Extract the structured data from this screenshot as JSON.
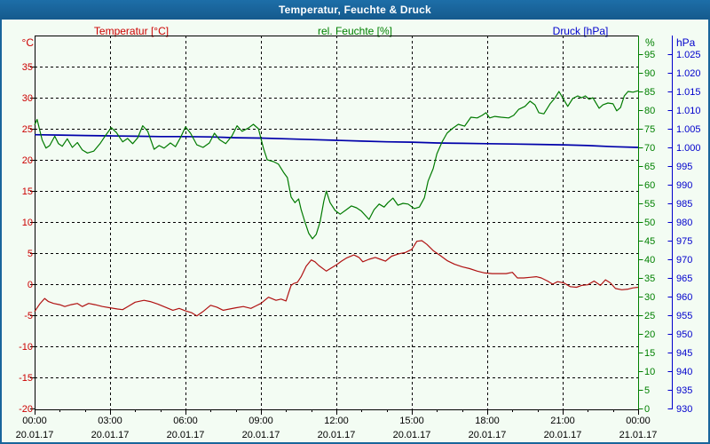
{
  "window": {
    "title": "Temperatur, Feuchte & Druck"
  },
  "header": {
    "temperature_label": "Temperatur [°C]",
    "humidity_label": "rel. Feuchte [%]",
    "pressure_label": "Druck [hPa]",
    "temperature_unit": "°C",
    "humidity_unit": "%",
    "pressure_unit": "hPa"
  },
  "colors": {
    "titlebar": "#19659b",
    "background": "#f3fcf3",
    "border": "#19659b",
    "grid": "#000000",
    "frame": "#000000",
    "x_text": "#000000",
    "temperature_label": "#cc0000",
    "humidity_label": "#008000",
    "pressure_label": "#0000cc",
    "temperature_line": "#b01212",
    "humidity_line": "#007a00",
    "pressure_line": "#0000aa"
  },
  "chart_data": {
    "type": "line",
    "title": "Temperatur, Feuchte & Druck",
    "grid": "dashed 3h vertical / 5-unit horizontal",
    "legend_position": "top",
    "x_axis": {
      "range_hours": [
        0,
        24
      ],
      "major_tick_hours": [
        0,
        3,
        6,
        9,
        12,
        15,
        18,
        21,
        24
      ],
      "tick_times": [
        "00:00",
        "03:00",
        "06:00",
        "09:00",
        "12:00",
        "15:00",
        "18:00",
        "21:00",
        "00:00"
      ],
      "tick_dates": [
        "20.01.17",
        "20.01.17",
        "20.01.17",
        "20.01.17",
        "20.01.17",
        "20.01.17",
        "20.01.17",
        "20.01.17",
        "21.01.17"
      ],
      "minor_tick_every_hours": 1
    },
    "y_axes": [
      {
        "id": "temperature",
        "unit": "°C",
        "side": "left",
        "range": [
          -20,
          40
        ],
        "ticks": [
          35,
          30,
          25,
          20,
          15,
          10,
          5,
          0,
          -5,
          -10,
          -15,
          -20
        ],
        "tick_labels": [
          "35",
          "30",
          "25",
          "20",
          "15",
          "10",
          "5",
          "0",
          "-5",
          "-10",
          "-15",
          "-20"
        ]
      },
      {
        "id": "humidity",
        "unit": "%",
        "side": "right",
        "range": [
          0,
          100
        ],
        "ticks": [
          95,
          90,
          85,
          80,
          75,
          70,
          65,
          60,
          55,
          50,
          45,
          40,
          35,
          30,
          25,
          20,
          15,
          10,
          5,
          0
        ],
        "tick_labels": [
          "95",
          "90",
          "85",
          "80",
          "75",
          "70",
          "65",
          "60",
          "55",
          "50",
          "45",
          "40",
          "35",
          "30",
          "25",
          "20",
          "15",
          "10",
          "5",
          "0"
        ]
      },
      {
        "id": "pressure",
        "unit": "hPa",
        "side": "right-outer",
        "range": [
          930,
          1030
        ],
        "ticks": [
          1025,
          1020,
          1015,
          1010,
          1005,
          1000,
          995,
          990,
          985,
          980,
          975,
          970,
          965,
          960,
          955,
          950,
          945,
          940,
          935,
          930
        ],
        "tick_labels": [
          "1.025",
          "1.020",
          "1.015",
          "1.010",
          "1.005",
          "1.000",
          "995",
          "990",
          "985",
          "980",
          "975",
          "970",
          "965",
          "960",
          "955",
          "950",
          "945",
          "940",
          "935",
          "930"
        ]
      }
    ],
    "series": [
      {
        "name": "Druck [hPa]",
        "axis": "pressure",
        "points": [
          [
            0,
            1003.4
          ],
          [
            1,
            1003.3
          ],
          [
            2,
            1003.2
          ],
          [
            3,
            1003.1
          ],
          [
            4,
            1003.0
          ],
          [
            5,
            1002.9
          ],
          [
            6,
            1002.9
          ],
          [
            7,
            1002.8
          ],
          [
            8,
            1002.6
          ],
          [
            9,
            1002.5
          ],
          [
            10,
            1002.3
          ],
          [
            11,
            1002.1
          ],
          [
            12,
            1001.9
          ],
          [
            13,
            1001.7
          ],
          [
            14,
            1001.5
          ],
          [
            15,
            1001.4
          ],
          [
            16,
            1001.2
          ],
          [
            17,
            1001.1
          ],
          [
            18,
            1001.0
          ],
          [
            19,
            1000.9
          ],
          [
            20,
            1000.8
          ],
          [
            21,
            1000.7
          ],
          [
            22,
            1000.5
          ],
          [
            23,
            1000.2
          ],
          [
            24,
            1000.0
          ]
        ]
      },
      {
        "name": "Temperatur [°C]",
        "axis": "temperature",
        "points": [
          [
            0,
            -4.4
          ],
          [
            0.2,
            -3.2
          ],
          [
            0.4,
            -2.3
          ],
          [
            0.55,
            -2.8
          ],
          [
            0.75,
            -3.1
          ],
          [
            1,
            -3.3
          ],
          [
            1.2,
            -3.6
          ],
          [
            1.45,
            -3.3
          ],
          [
            1.7,
            -3.1
          ],
          [
            1.9,
            -3.6
          ],
          [
            2.15,
            -3.1
          ],
          [
            2.4,
            -3.3
          ],
          [
            2.7,
            -3.6
          ],
          [
            3,
            -3.8
          ],
          [
            3.3,
            -4
          ],
          [
            3.5,
            -4.1
          ],
          [
            3.75,
            -3.5
          ],
          [
            4,
            -2.9
          ],
          [
            4.35,
            -2.6
          ],
          [
            4.6,
            -2.8
          ],
          [
            4.9,
            -3.2
          ],
          [
            5.2,
            -3.7
          ],
          [
            5.5,
            -4.2
          ],
          [
            5.75,
            -3.9
          ],
          [
            6,
            -4.3
          ],
          [
            6.25,
            -4.6
          ],
          [
            6.45,
            -5.1
          ],
          [
            6.7,
            -4.4
          ],
          [
            7,
            -3.4
          ],
          [
            7.25,
            -3.7
          ],
          [
            7.5,
            -4.2
          ],
          [
            7.75,
            -4
          ],
          [
            8,
            -3.8
          ],
          [
            8.3,
            -3.6
          ],
          [
            8.6,
            -3.9
          ],
          [
            8.8,
            -3.5
          ],
          [
            9,
            -3.1
          ],
          [
            9.3,
            -2.1
          ],
          [
            9.6,
            -2.6
          ],
          [
            9.8,
            -2.4
          ],
          [
            10,
            -2.7
          ],
          [
            10.1,
            -1.4
          ],
          [
            10.2,
            -0.2
          ],
          [
            10.3,
            0.1
          ],
          [
            10.45,
            0.3
          ],
          [
            10.6,
            1.2
          ],
          [
            10.8,
            2.9
          ],
          [
            11,
            3.9
          ],
          [
            11.15,
            3.6
          ],
          [
            11.3,
            3
          ],
          [
            11.6,
            2.1
          ],
          [
            11.8,
            2.6
          ],
          [
            12,
            3.1
          ],
          [
            12.2,
            3.7
          ],
          [
            12.4,
            4.2
          ],
          [
            12.7,
            4.7
          ],
          [
            12.9,
            4.3
          ],
          [
            13.05,
            3.6
          ],
          [
            13.3,
            4
          ],
          [
            13.55,
            4.3
          ],
          [
            13.75,
            4
          ],
          [
            13.95,
            3.7
          ],
          [
            14.2,
            4.5
          ],
          [
            14.5,
            4.9
          ],
          [
            14.75,
            5.1
          ],
          [
            15,
            5.6
          ],
          [
            15.2,
            6.9
          ],
          [
            15.4,
            7
          ],
          [
            15.6,
            6.4
          ],
          [
            15.85,
            5.4
          ],
          [
            16.1,
            4.7
          ],
          [
            16.4,
            3.8
          ],
          [
            16.7,
            3.2
          ],
          [
            17,
            2.8
          ],
          [
            17.3,
            2.5
          ],
          [
            17.6,
            2.1
          ],
          [
            17.9,
            1.8
          ],
          [
            18.2,
            1.7
          ],
          [
            18.5,
            1.7
          ],
          [
            18.75,
            1.7
          ],
          [
            19,
            1.9
          ],
          [
            19.2,
            1
          ],
          [
            19.45,
            1
          ],
          [
            19.7,
            1.1
          ],
          [
            19.95,
            1.2
          ],
          [
            20.15,
            1
          ],
          [
            20.4,
            0.5
          ],
          [
            20.6,
            0
          ],
          [
            20.8,
            0.4
          ],
          [
            21.05,
            0.2
          ],
          [
            21.3,
            -0.4
          ],
          [
            21.55,
            -0.5
          ],
          [
            21.75,
            -0.2
          ],
          [
            22,
            -0.1
          ],
          [
            22.25,
            0.5
          ],
          [
            22.5,
            -0.2
          ],
          [
            22.7,
            0.7
          ],
          [
            22.9,
            0.2
          ],
          [
            23.1,
            -0.7
          ],
          [
            23.35,
            -0.9
          ],
          [
            23.6,
            -0.8
          ],
          [
            23.8,
            -0.6
          ],
          [
            24,
            -0.5
          ]
        ]
      },
      {
        "name": "rel. Feuchte [%]",
        "axis": "humidity",
        "points": [
          [
            0,
            76
          ],
          [
            0.1,
            77.5
          ],
          [
            0.3,
            72
          ],
          [
            0.45,
            69.8
          ],
          [
            0.6,
            70.5
          ],
          [
            0.8,
            73
          ],
          [
            0.95,
            71
          ],
          [
            1.1,
            70.3
          ],
          [
            1.3,
            72.3
          ],
          [
            1.5,
            70
          ],
          [
            1.7,
            71.3
          ],
          [
            1.9,
            69.3
          ],
          [
            2.1,
            68.5
          ],
          [
            2.35,
            69
          ],
          [
            2.6,
            71
          ],
          [
            2.8,
            73
          ],
          [
            3.05,
            75.3
          ],
          [
            3.25,
            74
          ],
          [
            3.5,
            71.5
          ],
          [
            3.7,
            72.4
          ],
          [
            3.9,
            71
          ],
          [
            4.1,
            72.6
          ],
          [
            4.3,
            75.8
          ],
          [
            4.5,
            74.3
          ],
          [
            4.75,
            69.5
          ],
          [
            4.95,
            70.5
          ],
          [
            5.15,
            69.8
          ],
          [
            5.4,
            71.2
          ],
          [
            5.6,
            70.2
          ],
          [
            5.8,
            72.6
          ],
          [
            6,
            75.5
          ],
          [
            6.2,
            73.8
          ],
          [
            6.45,
            70.7
          ],
          [
            6.7,
            70
          ],
          [
            6.95,
            71.2
          ],
          [
            7.15,
            73.8
          ],
          [
            7.35,
            72.1
          ],
          [
            7.6,
            71
          ],
          [
            7.85,
            73.1
          ],
          [
            8.05,
            75.8
          ],
          [
            8.25,
            74.3
          ],
          [
            8.5,
            75.2
          ],
          [
            8.7,
            76.2
          ],
          [
            8.9,
            75
          ],
          [
            9.1,
            69.8
          ],
          [
            9.25,
            66.7
          ],
          [
            9.5,
            66.2
          ],
          [
            9.7,
            65.5
          ],
          [
            9.9,
            63.3
          ],
          [
            10.05,
            61.9
          ],
          [
            10.2,
            56.7
          ],
          [
            10.35,
            55.2
          ],
          [
            10.5,
            56.2
          ],
          [
            10.6,
            53.3
          ],
          [
            10.75,
            50
          ],
          [
            10.9,
            47
          ],
          [
            11.05,
            45.5
          ],
          [
            11.2,
            46.7
          ],
          [
            11.35,
            50
          ],
          [
            11.5,
            55.5
          ],
          [
            11.6,
            58.3
          ],
          [
            11.75,
            55.2
          ],
          [
            11.95,
            53.1
          ],
          [
            12.15,
            52.1
          ],
          [
            12.4,
            53.3
          ],
          [
            12.6,
            54.3
          ],
          [
            12.8,
            53.8
          ],
          [
            13,
            52.9
          ],
          [
            13.3,
            50.7
          ],
          [
            13.5,
            53.3
          ],
          [
            13.7,
            54.8
          ],
          [
            13.9,
            54
          ],
          [
            14.05,
            55.2
          ],
          [
            14.25,
            56.4
          ],
          [
            14.45,
            54.5
          ],
          [
            14.65,
            55
          ],
          [
            14.85,
            54.8
          ],
          [
            15.1,
            53.6
          ],
          [
            15.3,
            54
          ],
          [
            15.5,
            56.5
          ],
          [
            15.65,
            61
          ],
          [
            15.85,
            64.3
          ],
          [
            16,
            68.3
          ],
          [
            16.2,
            71.4
          ],
          [
            16.4,
            73.8
          ],
          [
            16.6,
            75
          ],
          [
            16.85,
            76.2
          ],
          [
            17.1,
            75.7
          ],
          [
            17.35,
            78.1
          ],
          [
            17.6,
            77.9
          ],
          [
            17.8,
            78.6
          ],
          [
            17.95,
            79.3
          ],
          [
            18.1,
            77.9
          ],
          [
            18.3,
            78.3
          ],
          [
            18.55,
            78.1
          ],
          [
            18.85,
            77.9
          ],
          [
            19.05,
            78.6
          ],
          [
            19.25,
            80.2
          ],
          [
            19.5,
            81
          ],
          [
            19.7,
            82.4
          ],
          [
            19.9,
            81.4
          ],
          [
            20.05,
            79.3
          ],
          [
            20.25,
            79
          ],
          [
            20.5,
            81.7
          ],
          [
            20.7,
            83.3
          ],
          [
            20.85,
            85
          ],
          [
            21,
            83.3
          ],
          [
            21.2,
            81
          ],
          [
            21.4,
            83.1
          ],
          [
            21.6,
            83.8
          ],
          [
            21.75,
            83.3
          ],
          [
            21.9,
            83.8
          ],
          [
            22.05,
            82.9
          ],
          [
            22.2,
            83.3
          ],
          [
            22.45,
            80.5
          ],
          [
            22.6,
            81.4
          ],
          [
            22.8,
            81.9
          ],
          [
            23,
            81.7
          ],
          [
            23.15,
            79.8
          ],
          [
            23.3,
            80.7
          ],
          [
            23.45,
            83.8
          ],
          [
            23.6,
            85
          ],
          [
            23.8,
            84.8
          ],
          [
            24,
            85.2
          ]
        ]
      }
    ]
  }
}
